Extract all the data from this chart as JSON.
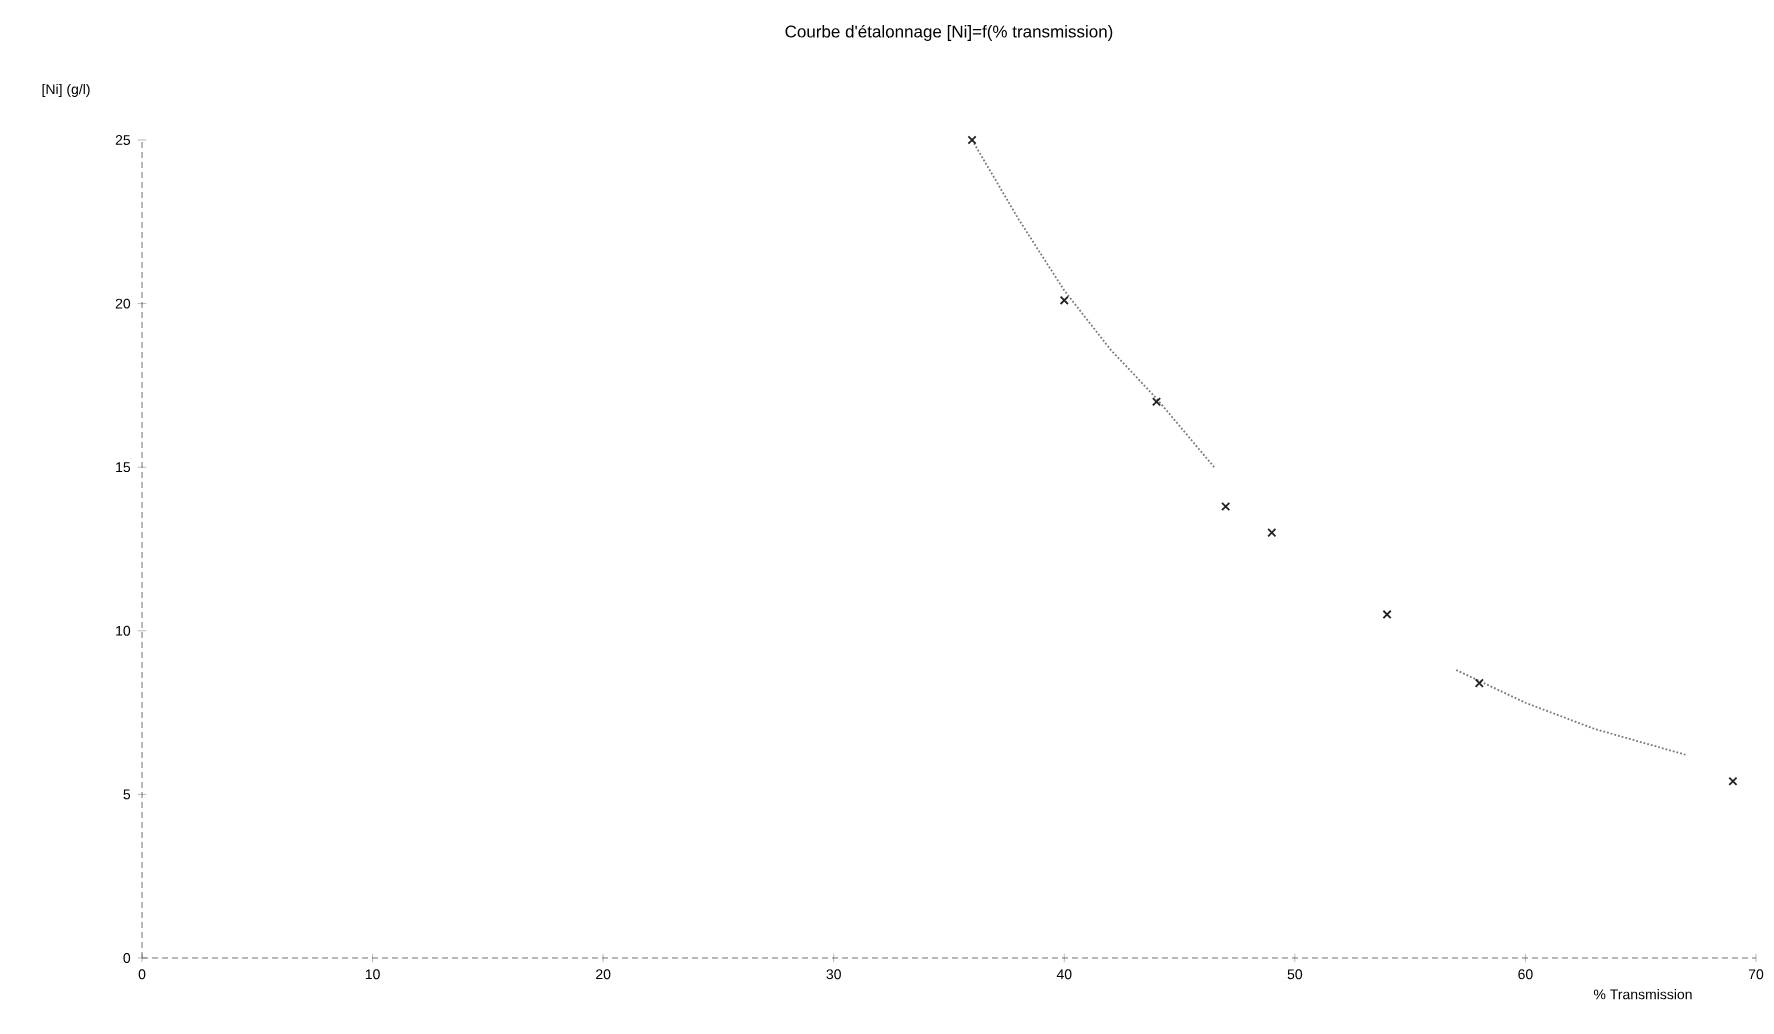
{
  "chart_data": {
    "type": "scatter",
    "title": "Courbe d'étalonnage [Ni]=f(% transmission)",
    "xlabel": "% Transmission",
    "ylabel": "[Ni] (g/l)",
    "xlim": [
      0,
      70
    ],
    "ylim": [
      0,
      25
    ],
    "xticks": [
      0,
      10,
      20,
      30,
      40,
      50,
      60,
      70
    ],
    "yticks": [
      0,
      5,
      10,
      15,
      20,
      25
    ],
    "grid": false,
    "series": [
      {
        "marker": "cross",
        "color": "#222222",
        "x": [
          36,
          40,
          44,
          47,
          49,
          54,
          58,
          69
        ],
        "values": [
          25.0,
          20.1,
          17.0,
          13.8,
          13.0,
          10.5,
          8.4,
          5.4
        ]
      },
      {
        "type": "line",
        "marker": "none",
        "line_style": "dotted",
        "color": "#777777",
        "x": [
          36,
          38,
          40,
          42,
          44,
          46.5,
          52,
          57,
          60,
          63,
          67
        ],
        "values": [
          25.0,
          22.6,
          20.4,
          18.6,
          17.1,
          15.0,
          null,
          8.8,
          7.8,
          7.0,
          6.2
        ]
      }
    ]
  }
}
